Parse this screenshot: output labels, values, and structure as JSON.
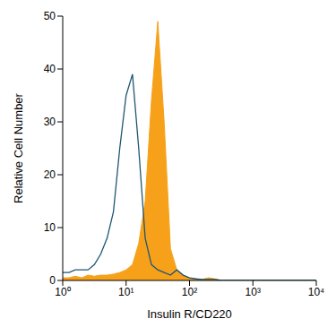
{
  "chart_data": {
    "type": "area",
    "xlabel": "Insulin R/CD220",
    "ylabel": "Relative Cell Number",
    "log": "x",
    "grid": false,
    "xlim": [
      1,
      10000
    ],
    "ylim": [
      0,
      50
    ],
    "xticks": [
      {
        "value": 1,
        "label": "10⁰"
      },
      {
        "value": 10,
        "label": "10¹"
      },
      {
        "value": 100,
        "label": "10²"
      },
      {
        "value": 1000,
        "label": "10³"
      },
      {
        "value": 10000,
        "label": "10⁴"
      }
    ],
    "yticks": [
      0,
      10,
      20,
      30,
      40,
      50
    ],
    "x": [
      1,
      1.26,
      1.58,
      2,
      2.51,
      3.16,
      3.98,
      5.01,
      6.31,
      7.94,
      10,
      12.6,
      15.8,
      20,
      25.1,
      31.6,
      39.8,
      50.1,
      63.1,
      79.4,
      100,
      126,
      158,
      200,
      251,
      316,
      398,
      1000,
      10000
    ],
    "series": [
      {
        "type": "area",
        "color": "#f7a11a",
        "values": [
          0.5,
          0.5,
          0.8,
          0.5,
          1,
          0.8,
          1,
          1,
          1.2,
          1.5,
          2,
          3,
          7,
          15,
          34,
          49,
          30,
          6,
          2,
          1,
          0.5,
          0.3,
          0.2,
          0.5,
          0.3,
          0,
          0,
          0,
          0
        ]
      },
      {
        "type": "line",
        "color": "#1f5673",
        "values": [
          1.5,
          1.5,
          2,
          2,
          2,
          3,
          5,
          8,
          13,
          25,
          35,
          39,
          25,
          8,
          3,
          2,
          1.5,
          1,
          2,
          1,
          0.5,
          0.3,
          0.2,
          0.2,
          0.2,
          0,
          0,
          0,
          0
        ]
      }
    ]
  }
}
